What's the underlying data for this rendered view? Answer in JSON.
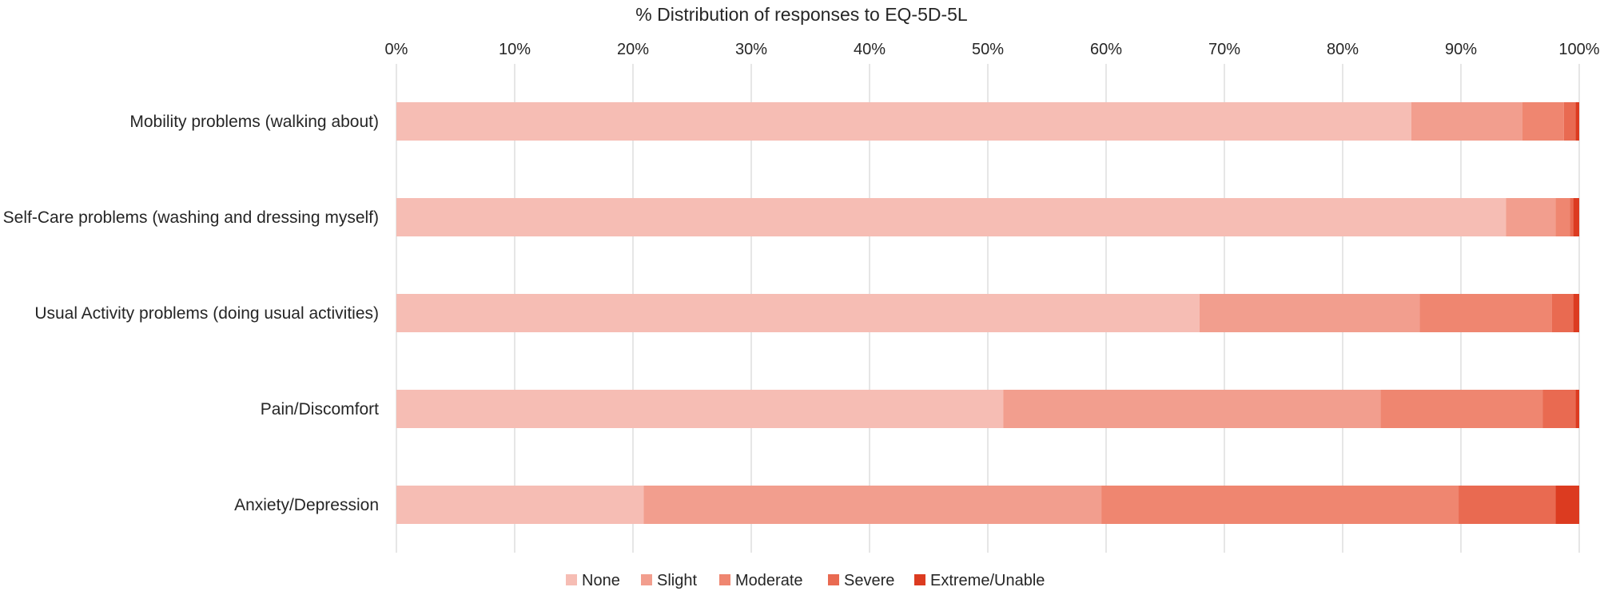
{
  "colors": {
    "none": "#f6bdb4",
    "slight": "#f29e8e",
    "moderate": "#ef8670",
    "severe": "#e96a51",
    "extreme": "#dc3b20"
  },
  "chart_data": {
    "type": "bar",
    "orientation": "horizontal",
    "stacked": "percent",
    "title": "% Distribution of responses to EQ-5D-5L",
    "xlim": [
      0,
      100
    ],
    "xticks": [
      "0%",
      "10%",
      "20%",
      "30%",
      "40%",
      "50%",
      "60%",
      "70%",
      "80%",
      "90%",
      "100%"
    ],
    "grid": true,
    "legend_position": "bottom",
    "categories": [
      "Mobility problems (walking about)",
      "Self-Care problems (washing and dressing myself)",
      "Usual Activity problems (doing usual activities)",
      "Pain/Discomfort",
      "Anxiety/Depression"
    ],
    "series": [
      {
        "name": "None",
        "color_key": "none",
        "values": [
          85.8,
          93.8,
          67.9,
          51.3,
          20.9
        ]
      },
      {
        "name": "Slight",
        "color_key": "slight",
        "values": [
          9.4,
          4.2,
          18.6,
          31.9,
          38.7
        ]
      },
      {
        "name": "Moderate",
        "color_key": "moderate",
        "values": [
          3.5,
          1.2,
          11.2,
          13.7,
          30.2
        ]
      },
      {
        "name": "Severe",
        "color_key": "severe",
        "values": [
          1.0,
          0.3,
          1.8,
          2.8,
          8.2
        ]
      },
      {
        "name": "Extreme/Unable",
        "color_key": "extreme",
        "values": [
          0.3,
          0.5,
          0.5,
          0.3,
          2.0
        ]
      }
    ]
  }
}
